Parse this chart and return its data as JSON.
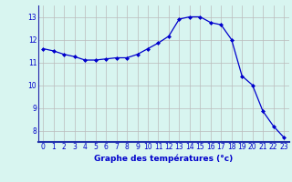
{
  "hours": [
    0,
    1,
    2,
    3,
    4,
    5,
    6,
    7,
    8,
    9,
    10,
    11,
    12,
    13,
    14,
    15,
    16,
    17,
    18,
    19,
    20,
    21,
    22,
    23
  ],
  "temperatures": [
    11.6,
    11.5,
    11.35,
    11.25,
    11.1,
    11.1,
    11.15,
    11.2,
    11.2,
    11.35,
    11.6,
    11.85,
    12.15,
    12.9,
    13.0,
    13.0,
    12.75,
    12.65,
    12.0,
    10.4,
    10.0,
    8.85,
    8.2,
    7.7
  ],
  "line_color": "#0000cc",
  "marker": "D",
  "marker_size": 2.0,
  "bg_color": "#d8f5f0",
  "grid_color": "#bbbbbb",
  "axis_line_color": "#2222aa",
  "xlabel": "Graphe des températures (°c)",
  "xlabel_color": "#0000cc",
  "tick_color": "#0000cc",
  "ylim": [
    7.5,
    13.5
  ],
  "xlim": [
    -0.5,
    23.5
  ],
  "yticks": [
    8,
    9,
    10,
    11,
    12,
    13
  ],
  "xticks": [
    0,
    1,
    2,
    3,
    4,
    5,
    6,
    7,
    8,
    9,
    10,
    11,
    12,
    13,
    14,
    15,
    16,
    17,
    18,
    19,
    20,
    21,
    22,
    23
  ],
  "bottom_bar_color": "#2233aa",
  "tick_fontsize": 5.5,
  "xlabel_fontsize": 6.5
}
